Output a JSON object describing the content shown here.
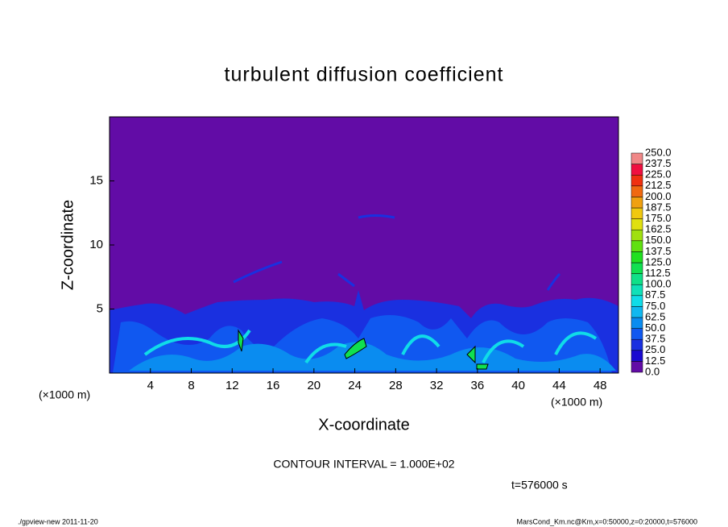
{
  "chart_data": {
    "type": "contour",
    "title": "turbulent diffusion coefficient",
    "x_label": "X-coordinate",
    "y_label": "Z-coordinate",
    "x_unit": "(×1000 m)",
    "y_unit": "(×1000 m)",
    "xlim": [
      0,
      49.8
    ],
    "ylim": [
      0,
      20
    ],
    "xticks": [
      4,
      8,
      12,
      16,
      20,
      24,
      28,
      32,
      36,
      40,
      44,
      48
    ],
    "yticks": [
      5,
      10,
      15
    ],
    "levels": [
      {
        "value": 0,
        "label": "0.0"
      },
      12.5,
      25,
      37.5,
      50,
      62.5,
      75,
      87.5,
      100,
      112.5,
      125,
      137.5,
      150,
      162.5,
      175,
      187.5,
      200,
      212.5,
      225,
      237.5,
      250
    ],
    "level_labels": [
      "0.0",
      "12.5",
      "25.0",
      "37.5",
      "50.0",
      "62.5",
      "75.0",
      "87.5",
      "100.0",
      "112.5",
      "125.0",
      "137.5",
      "150.0",
      "162.5",
      "175.0",
      "187.5",
      "200.0",
      "212.5",
      "225.0",
      "237.5",
      "250.0"
    ],
    "colors": [
      "#620ca6",
      "#1a0ad0",
      "#1a30e0",
      "#1058f0",
      "#0a8cf0",
      "#10b8f0",
      "#10dce8",
      "#10e0b8",
      "#10e088",
      "#10e050",
      "#20e020",
      "#60e010",
      "#a0e010",
      "#e0e010",
      "#f0c810",
      "#f0a010",
      "#f06810",
      "#f03010",
      "#f01040",
      "#f08888"
    ],
    "contour_interval_text": "CONTOUR INTERVAL = 1.000E+02",
    "time_text": "t=576000 s",
    "footer_left": "./gpview-new   2011-11-20",
    "footer_right": "MarsCond_Km.nc@Km,x=0:50000,z=0:20000,t=576000"
  }
}
